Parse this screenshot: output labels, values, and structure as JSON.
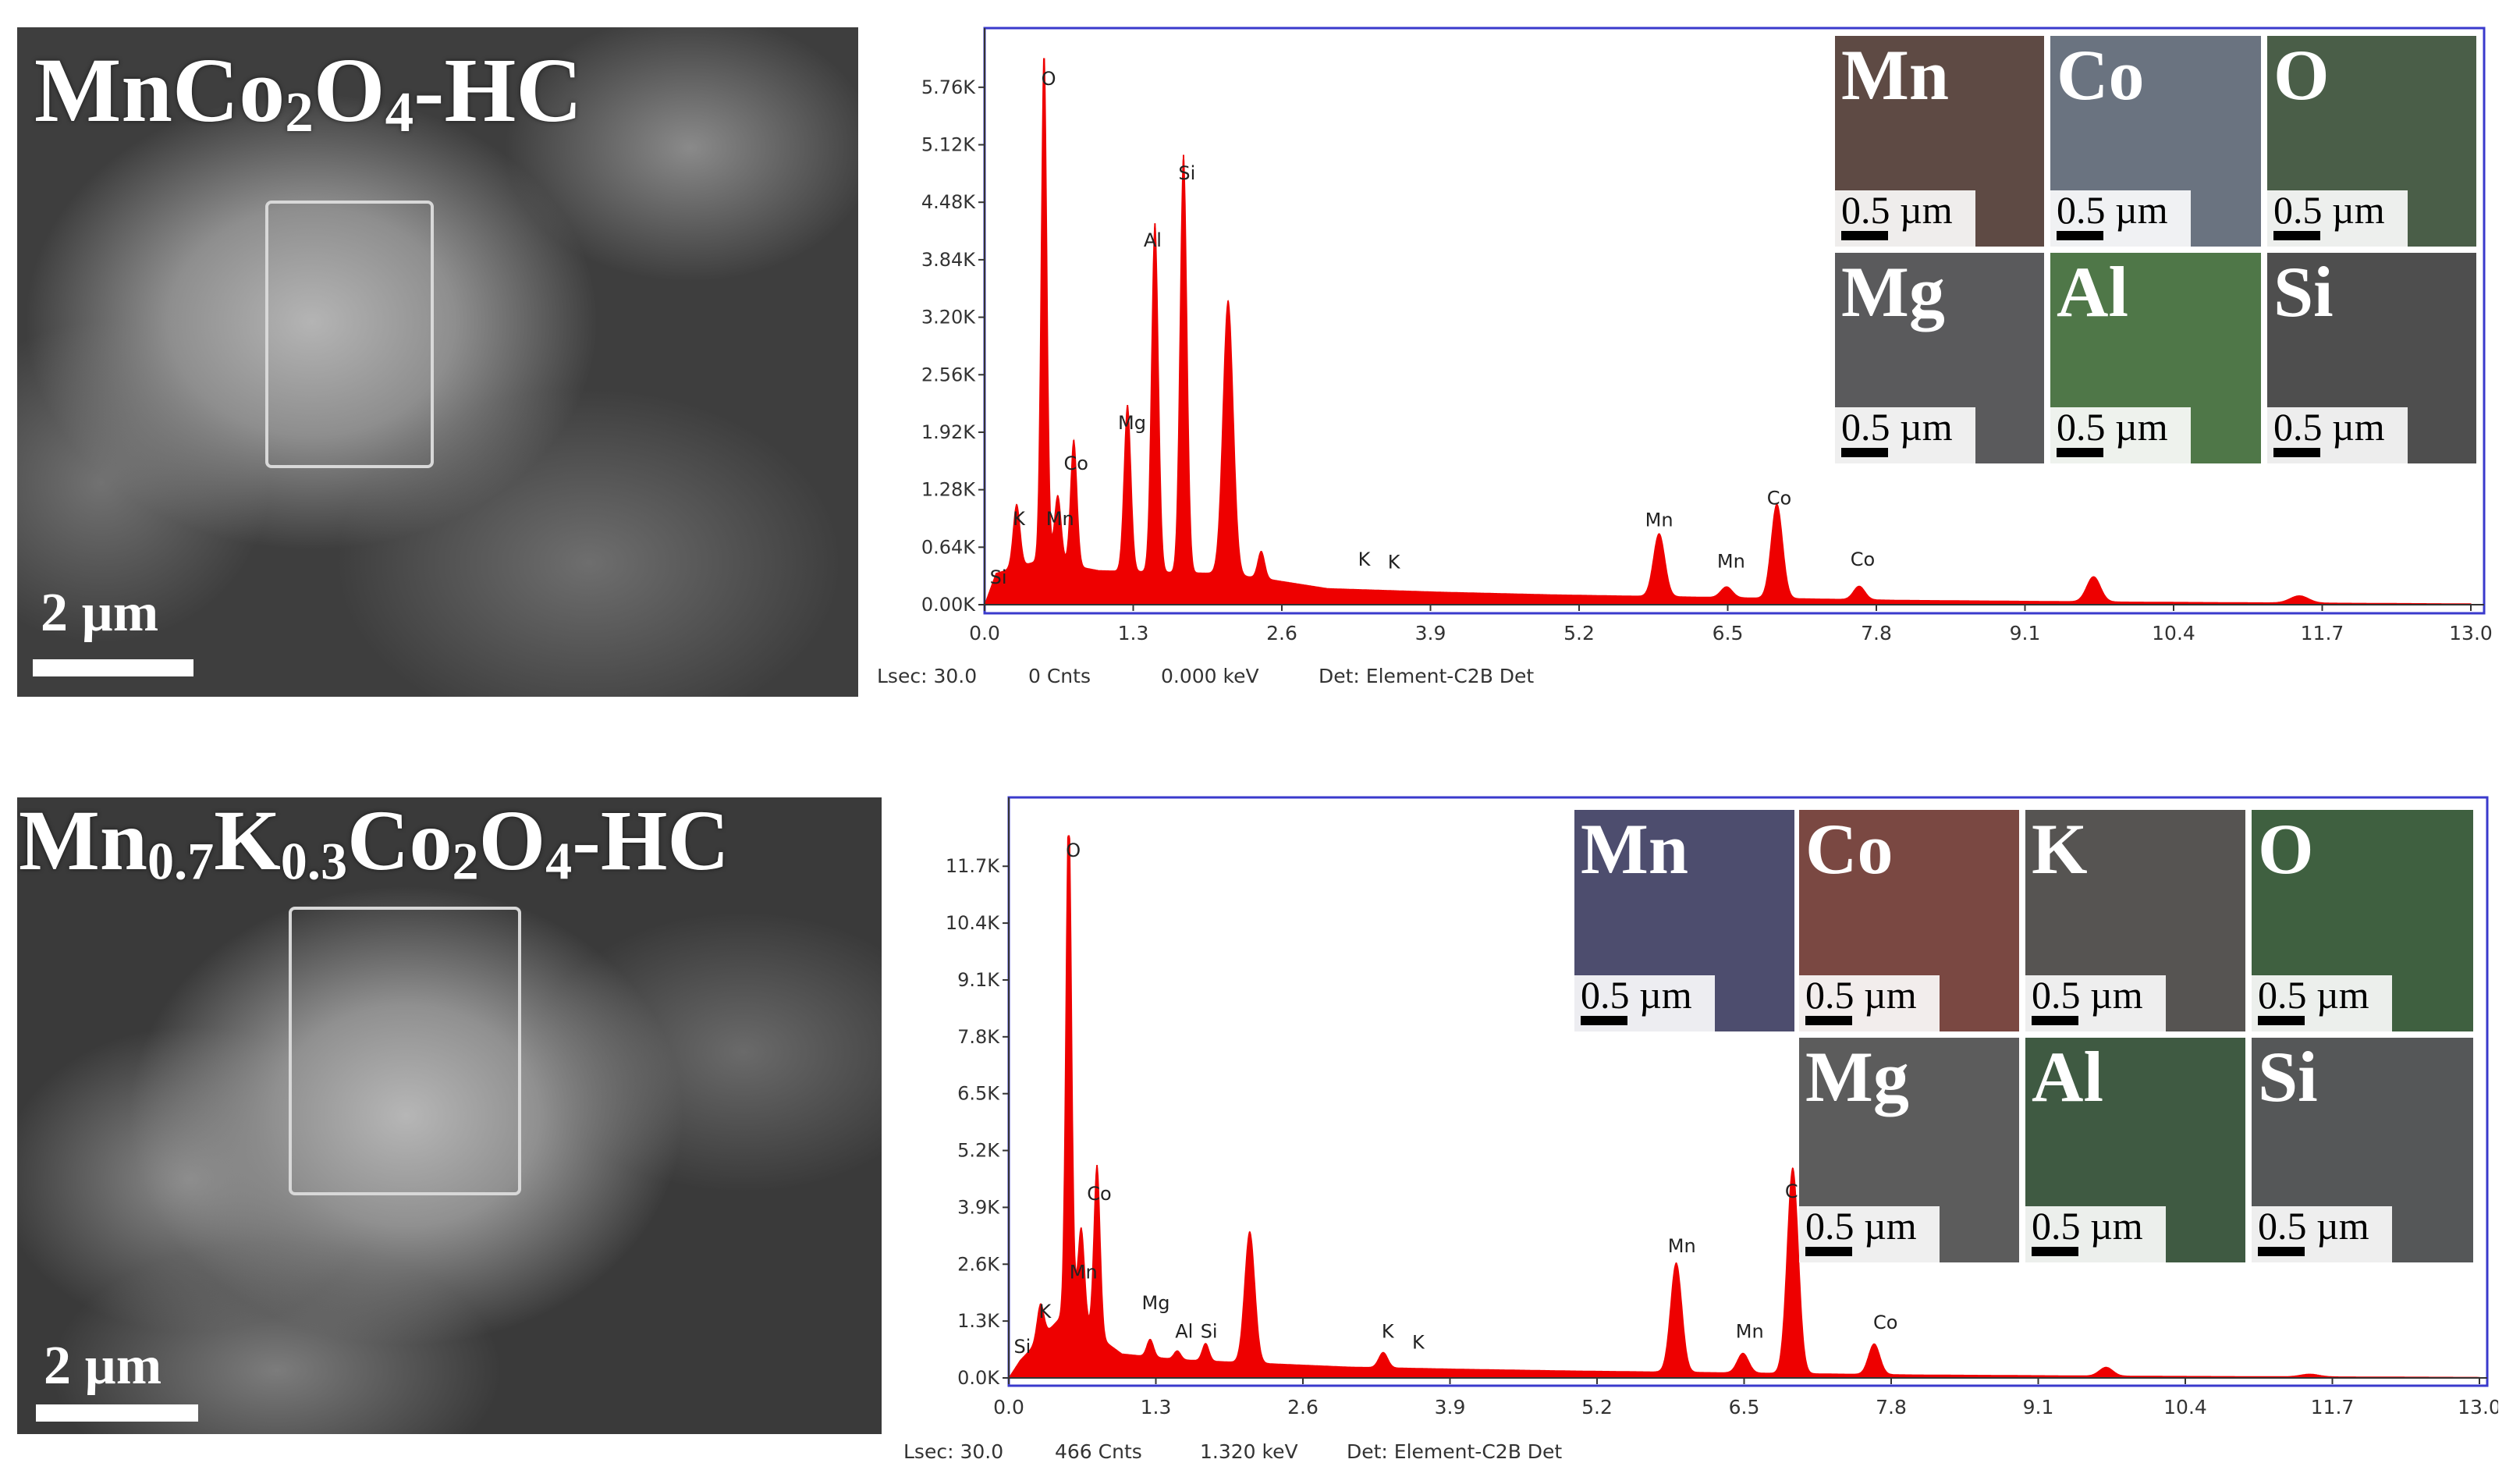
{
  "panels": [
    {
      "id": "top",
      "sem": {
        "title_main": "MnCo",
        "title_sub1": "2",
        "title_mid": "O",
        "title_sub2": "4",
        "title_tail": "-HC",
        "scale_label": "2 µm"
      },
      "maps": [
        {
          "element": "Mn",
          "scale": "0.5 µm",
          "color": "#5e4a44"
        },
        {
          "element": "Co",
          "scale": "0.5 µm",
          "color": "#6a7380"
        },
        {
          "element": "O",
          "scale": "0.5 µm",
          "color": "#4a5e48"
        },
        {
          "element": "Mg",
          "scale": "0.5 µm",
          "color": "#5a5a5c"
        },
        {
          "element": "Al",
          "scale": "0.5 µm",
          "color": "#4f7748"
        },
        {
          "element": "Si",
          "scale": "0.5 µm",
          "color": "#4e4e4e"
        }
      ],
      "status": {
        "lsec": "Lsec: 30.0",
        "cnts": "0 Cnts",
        "kev": "0.000 keV",
        "det": "Det: Element-C2B Det"
      }
    },
    {
      "id": "bottom",
      "sem": {
        "title_main": "Mn",
        "title_sub1": "0.7",
        "title_mid": "K",
        "title_sub2": "0.3",
        "title_tail": "Co",
        "title_sub3": "2",
        "title_mid2": "O",
        "title_sub4": "4",
        "title_tail2": "-HC",
        "scale_label": "2 µm"
      },
      "maps": [
        {
          "element": "Mn",
          "scale": "0.5 µm",
          "color": "#4d4d6e"
        },
        {
          "element": "Co",
          "scale": "0.5 µm",
          "color": "#7a4842"
        },
        {
          "element": "K",
          "scale": "0.5 µm",
          "color": "#565452"
        },
        {
          "element": "O",
          "scale": "0.5 µm",
          "color": "#3f6040"
        },
        {
          "element": "Mg",
          "scale": "0.5 µm",
          "color": "#5c5c5c"
        },
        {
          "element": "Al",
          "scale": "0.5 µm",
          "color": "#3f5a42"
        },
        {
          "element": "Si",
          "scale": "0.5 µm",
          "color": "#555758"
        }
      ],
      "status": {
        "lsec": "Lsec: 30.0",
        "cnts": "466 Cnts",
        "kev": "1.320 keV",
        "det": "Det: Element-C2B Det"
      }
    }
  ],
  "colors": {
    "spectrum": "#ee0000",
    "frame": "#3a3acc",
    "axis": "#333333"
  },
  "chart_data": [
    {
      "type": "area",
      "title": "",
      "xlabel": "",
      "ylabel": "",
      "xlim": [
        0.0,
        13.0
      ],
      "ylim": [
        0,
        6080
      ],
      "xticks": [
        "0.0",
        "1.3",
        "2.6",
        "3.9",
        "5.2",
        "6.5",
        "7.8",
        "9.1",
        "10.4",
        "11.7",
        "13.0"
      ],
      "yticks": [
        "0.00K",
        "0.64K",
        "1.28K",
        "1.92K",
        "2.56K",
        "3.20K",
        "3.84K",
        "4.48K",
        "5.12K",
        "5.76K"
      ],
      "ytick_values": [
        0,
        640,
        1280,
        1920,
        2560,
        3200,
        3840,
        4480,
        5120,
        5760
      ],
      "baseline": [
        [
          0.1,
          350
        ],
        [
          0.5,
          500
        ],
        [
          1.0,
          380
        ],
        [
          2.0,
          350
        ],
        [
          2.4,
          300
        ],
        [
          3.0,
          180
        ],
        [
          4.0,
          140
        ],
        [
          5.0,
          110
        ],
        [
          6.0,
          90
        ],
        [
          7.0,
          70
        ],
        [
          8.0,
          50
        ],
        [
          10.0,
          30
        ],
        [
          13.0,
          10
        ]
      ],
      "peaks": [
        {
          "x": 0.28,
          "y": 700,
          "w": 0.03
        },
        {
          "x": 0.52,
          "y": 5700,
          "w": 0.025
        },
        {
          "x": 0.64,
          "y": 750,
          "w": 0.03
        },
        {
          "x": 0.78,
          "y": 1400,
          "w": 0.028
        },
        {
          "x": 1.25,
          "y": 1850,
          "w": 0.03
        },
        {
          "x": 1.49,
          "y": 3880,
          "w": 0.03
        },
        {
          "x": 1.74,
          "y": 4650,
          "w": 0.03
        },
        {
          "x": 2.13,
          "y": 3050,
          "w": 0.045
        },
        {
          "x": 2.42,
          "y": 300,
          "w": 0.03
        },
        {
          "x": 5.9,
          "y": 700,
          "w": 0.05
        },
        {
          "x": 6.49,
          "y": 120,
          "w": 0.05
        },
        {
          "x": 6.93,
          "y": 1050,
          "w": 0.05
        },
        {
          "x": 7.65,
          "y": 150,
          "w": 0.05
        },
        {
          "x": 9.7,
          "y": 280,
          "w": 0.06
        },
        {
          "x": 11.5,
          "y": 80,
          "w": 0.08
        }
      ],
      "annotations": [
        {
          "label": "Si",
          "x": 0.12,
          "y": 200
        },
        {
          "label": "K",
          "x": 0.3,
          "y": 850
        },
        {
          "label": "O",
          "x": 0.56,
          "y": 5750
        },
        {
          "label": "Mn",
          "x": 0.66,
          "y": 850
        },
        {
          "label": "Co",
          "x": 0.8,
          "y": 1470
        },
        {
          "label": "Mg",
          "x": 1.29,
          "y": 1920
        },
        {
          "label": "Al",
          "x": 1.47,
          "y": 3950
        },
        {
          "label": "Si",
          "x": 1.77,
          "y": 4700
        },
        {
          "label": "K",
          "x": 3.32,
          "y": 400
        },
        {
          "label": "K",
          "x": 3.58,
          "y": 370
        },
        {
          "label": "Mn",
          "x": 5.9,
          "y": 840
        },
        {
          "label": "Mn",
          "x": 6.53,
          "y": 380
        },
        {
          "label": "Co",
          "x": 6.95,
          "y": 1080
        },
        {
          "label": "Co",
          "x": 7.68,
          "y": 400
        }
      ]
    },
    {
      "type": "area",
      "title": "",
      "xlabel": "",
      "ylabel": "",
      "xlim": [
        0.0,
        13.0
      ],
      "ylim": [
        0,
        12400
      ],
      "xticks": [
        "0.0",
        "1.3",
        "2.6",
        "3.9",
        "5.2",
        "6.5",
        "7.8",
        "9.1",
        "10.4",
        "11.7",
        "13.0"
      ],
      "yticks": [
        "0.0K",
        "1.3K",
        "2.6K",
        "3.9K",
        "5.2K",
        "6.5K",
        "7.8K",
        "9.1K",
        "10.4K",
        "11.7K"
      ],
      "ytick_values": [
        0,
        1300,
        2600,
        3900,
        5200,
        6500,
        7800,
        9100,
        10400,
        11700
      ],
      "baseline": [
        [
          0.1,
          400
        ],
        [
          0.5,
          1500
        ],
        [
          1.0,
          550
        ],
        [
          1.5,
          420
        ],
        [
          2.0,
          360
        ],
        [
          3.0,
          250
        ],
        [
          4.0,
          200
        ],
        [
          5.0,
          160
        ],
        [
          6.0,
          130
        ],
        [
          7.0,
          100
        ],
        [
          8.0,
          70
        ],
        [
          10.0,
          40
        ],
        [
          13.0,
          15
        ]
      ],
      "peaks": [
        {
          "x": 0.28,
          "y": 800,
          "w": 0.03
        },
        {
          "x": 0.53,
          "y": 11800,
          "w": 0.025
        },
        {
          "x": 0.64,
          "y": 2200,
          "w": 0.03
        },
        {
          "x": 0.78,
          "y": 3900,
          "w": 0.028
        },
        {
          "x": 1.25,
          "y": 400,
          "w": 0.03
        },
        {
          "x": 1.49,
          "y": 200,
          "w": 0.03
        },
        {
          "x": 1.74,
          "y": 400,
          "w": 0.03
        },
        {
          "x": 2.13,
          "y": 3000,
          "w": 0.045
        },
        {
          "x": 3.31,
          "y": 350,
          "w": 0.04
        },
        {
          "x": 5.9,
          "y": 2500,
          "w": 0.05
        },
        {
          "x": 6.49,
          "y": 450,
          "w": 0.05
        },
        {
          "x": 6.93,
          "y": 4700,
          "w": 0.05
        },
        {
          "x": 7.65,
          "y": 700,
          "w": 0.05
        },
        {
          "x": 9.7,
          "y": 200,
          "w": 0.06
        },
        {
          "x": 11.5,
          "y": 60,
          "w": 0.08
        }
      ],
      "annotations": [
        {
          "label": "Si",
          "x": 0.12,
          "y": 500
        },
        {
          "label": "K",
          "x": 0.32,
          "y": 1300
        },
        {
          "label": "O",
          "x": 0.57,
          "y": 11850
        },
        {
          "label": "Mn",
          "x": 0.66,
          "y": 2200
        },
        {
          "label": "Co",
          "x": 0.8,
          "y": 4000
        },
        {
          "label": "Mg",
          "x": 1.3,
          "y": 1500
        },
        {
          "label": "Al",
          "x": 1.55,
          "y": 850
        },
        {
          "label": "Si",
          "x": 1.77,
          "y": 850
        },
        {
          "label": "K",
          "x": 3.35,
          "y": 850
        },
        {
          "label": "K",
          "x": 3.62,
          "y": 600
        },
        {
          "label": "Mn",
          "x": 5.95,
          "y": 2800
        },
        {
          "label": "Mn",
          "x": 6.55,
          "y": 850
        },
        {
          "label": "Co",
          "x": 6.97,
          "y": 4050
        },
        {
          "label": "Co",
          "x": 7.75,
          "y": 1050
        }
      ]
    }
  ]
}
